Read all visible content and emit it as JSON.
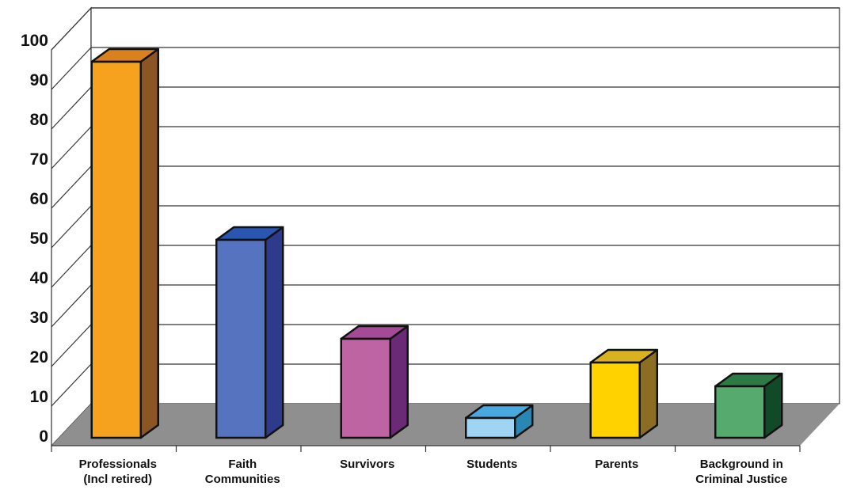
{
  "chart_data": {
    "type": "bar",
    "title": "",
    "xlabel": "",
    "ylabel": "",
    "ylim": [
      0,
      100
    ],
    "y_ticks": [
      0,
      10,
      20,
      30,
      40,
      50,
      60,
      70,
      80,
      90,
      100
    ],
    "grid": true,
    "legend": "none",
    "categories": [
      [
        "Professionals",
        "(Incl retired)"
      ],
      [
        "Faith",
        "Communities"
      ],
      [
        "Survivors"
      ],
      [
        "Students"
      ],
      [
        "Parents"
      ],
      [
        "Background in",
        "Criminal Justice"
      ]
    ],
    "values": [
      95,
      50,
      25,
      5,
      19,
      13
    ],
    "colors": {
      "bars": [
        {
          "front": "#f7a21f",
          "side": "#8c5524",
          "top": "#d9801f"
        },
        {
          "front": "#5573bf",
          "side": "#2e3a8c",
          "top": "#2a55b0"
        },
        {
          "front": "#bf64a2",
          "side": "#6a2a76",
          "top": "#a44a96"
        },
        {
          "front": "#9fd5f2",
          "side": "#2a86b3",
          "top": "#4aa8e0"
        },
        {
          "front": "#ffd200",
          "side": "#8c6d24",
          "top": "#d9b21f"
        },
        {
          "front": "#57aa6e",
          "side": "#114a26",
          "top": "#2e7a45"
        }
      ],
      "floor": "#8f8f8f",
      "grid": "#333333",
      "wall": "#ffffff"
    }
  }
}
